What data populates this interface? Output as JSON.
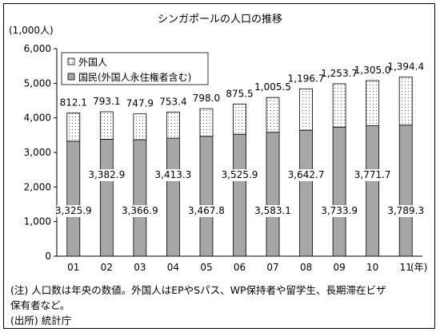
{
  "chart_data": {
    "type": "bar",
    "title": "シンガポールの人口の推移",
    "ylabel": "(1,000人)",
    "xlabel": "(年)",
    "categories": [
      "01",
      "02",
      "03",
      "04",
      "05",
      "06",
      "07",
      "08",
      "09",
      "10",
      "11"
    ],
    "series": [
      {
        "name": "国民(外国人永住権者含む)",
        "values": [
          3325.9,
          3382.9,
          3366.9,
          3413.3,
          3467.8,
          3525.9,
          3583.1,
          3642.7,
          3733.9,
          3771.7,
          3789.3
        ],
        "labels": [
          "3,325.9",
          "3,382.9",
          "3,366.9",
          "3,413.3",
          "3,467.8",
          "3,525.9",
          "3,583.1",
          "3,642.7",
          "3,733.9",
          "3,771.7",
          "3,789.3"
        ],
        "color": "#a6a6a6"
      },
      {
        "name": "外国人",
        "values": [
          812.1,
          793.1,
          747.9,
          753.4,
          798.0,
          875.5,
          1005.5,
          1196.7,
          1253.7,
          1305.0,
          1394.4
        ],
        "labels": [
          "812.1",
          "793.1",
          "747.9",
          "753.4",
          "798.0",
          "875.5",
          "1,005.5",
          "1,196.7",
          "1,253.7",
          "1,305.0",
          "1,394.4"
        ],
        "color": "#ffffff"
      }
    ],
    "yticks": [
      "0",
      "1,000",
      "2,000",
      "3,000",
      "4,000",
      "5,000",
      "6,000"
    ],
    "ylim": [
      0,
      6000
    ],
    "legend": "top-left",
    "grid": false
  },
  "notes": [
    "(注) 人口数は年央の数値。外国人はEPやSパス、WP保持者や留学生、長期滞在ビザ",
    "保有者など。",
    "(出所) 統計庁"
  ]
}
